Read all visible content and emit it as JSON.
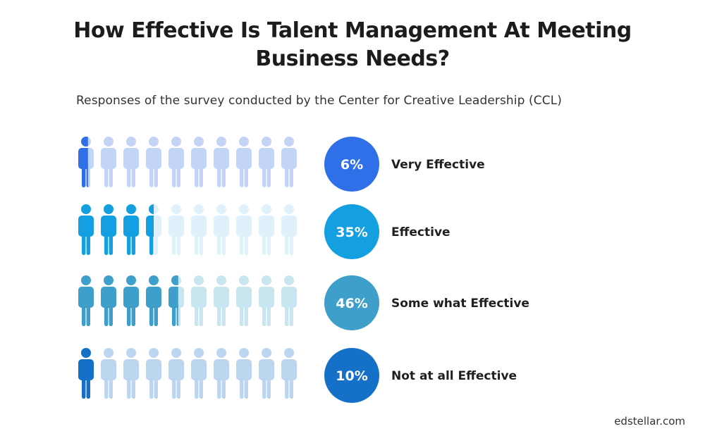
{
  "title": {
    "line1": "How Effective Is Talent Management At Meeting",
    "line2": "Business Needs?"
  },
  "subtitle": "Responses of the survey conducted by the Center for Creative Leadership (CCL)",
  "footer": "edstellar.com",
  "chart_data": {
    "type": "pictograph",
    "icons_per_row": 10,
    "icon": "person-icon",
    "rows": [
      {
        "label": "Very Effective",
        "value": 6,
        "value_label": "6%",
        "color": "#2f6fe8",
        "faded_color": "#c3d4f7"
      },
      {
        "label": "Effective",
        "value": 35,
        "value_label": "35%",
        "color": "#139fe0",
        "faded_color": "#e1f1fc"
      },
      {
        "label": "Some what Effective",
        "value": 46,
        "value_label": "46%",
        "color": "#3d9fca",
        "faded_color": "#c9e5f0"
      },
      {
        "label": "Not at all Effective",
        "value": 10,
        "value_label": "10%",
        "color": "#1570c8",
        "faded_color": "#bcd6ef"
      }
    ]
  }
}
